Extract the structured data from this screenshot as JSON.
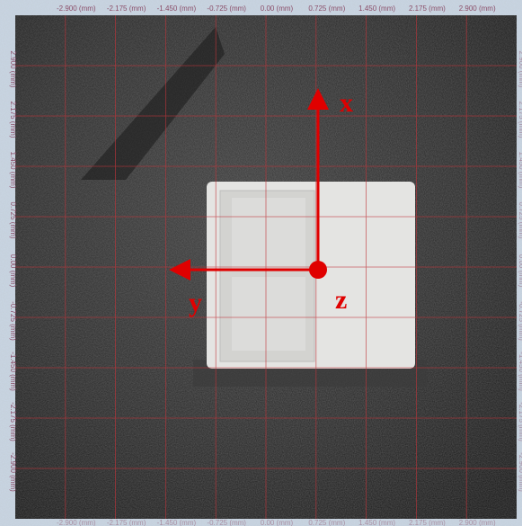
{
  "ruler": {
    "top_labels": [
      "-2.900 (mm)",
      "-2.175 (mm)",
      "-1.450 (mm)",
      "-0.725 (mm)",
      "0.00 (mm)",
      "0.725 (mm)",
      "1.450 (mm)",
      "2.175 (mm)",
      "2.900 (mm)"
    ],
    "left_labels": [
      "2.900 (mm)",
      "2.175 (mm)",
      "1.450 (mm)",
      "0.725 (mm)",
      "0.00 (mm)",
      "-0.725 (mm)",
      "-1.450 (mm)",
      "-2.175 (mm)",
      "-2.900 (mm)"
    ]
  },
  "annotations": {
    "x_axis": "x",
    "y_axis": "y",
    "z_axis": "z"
  }
}
